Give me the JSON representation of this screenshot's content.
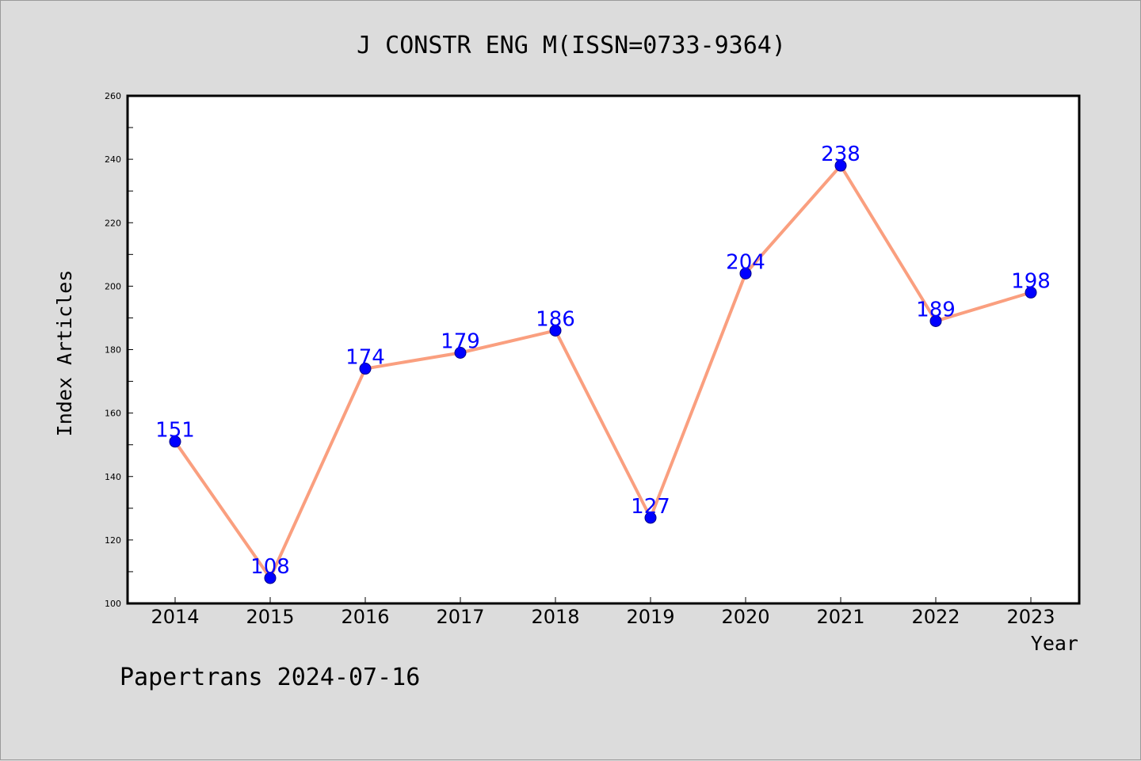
{
  "chart_data": {
    "type": "line",
    "title": "J CONSTR ENG M(ISSN=0733-9364)",
    "xlabel": "Year",
    "ylabel": "Index Articles",
    "categories": [
      "2014",
      "2015",
      "2016",
      "2017",
      "2018",
      "2019",
      "2020",
      "2021",
      "2022",
      "2023"
    ],
    "series": [
      {
        "values": [
          151,
          108,
          174,
          179,
          186,
          127,
          204,
          238,
          189,
          198
        ]
      }
    ],
    "ylim": [
      100,
      260
    ],
    "yticks": [
      100,
      120,
      140,
      160,
      180,
      200,
      220,
      240,
      260
    ],
    "grid": false,
    "legend": "none",
    "colors": {
      "line": "#fa9f7f",
      "marker": "#0000ff",
      "label": "#0000ff",
      "background": "#dcdcdc",
      "plot_area": "#ffffff"
    }
  },
  "footer": {
    "text": "Papertrans 2024-07-16"
  }
}
